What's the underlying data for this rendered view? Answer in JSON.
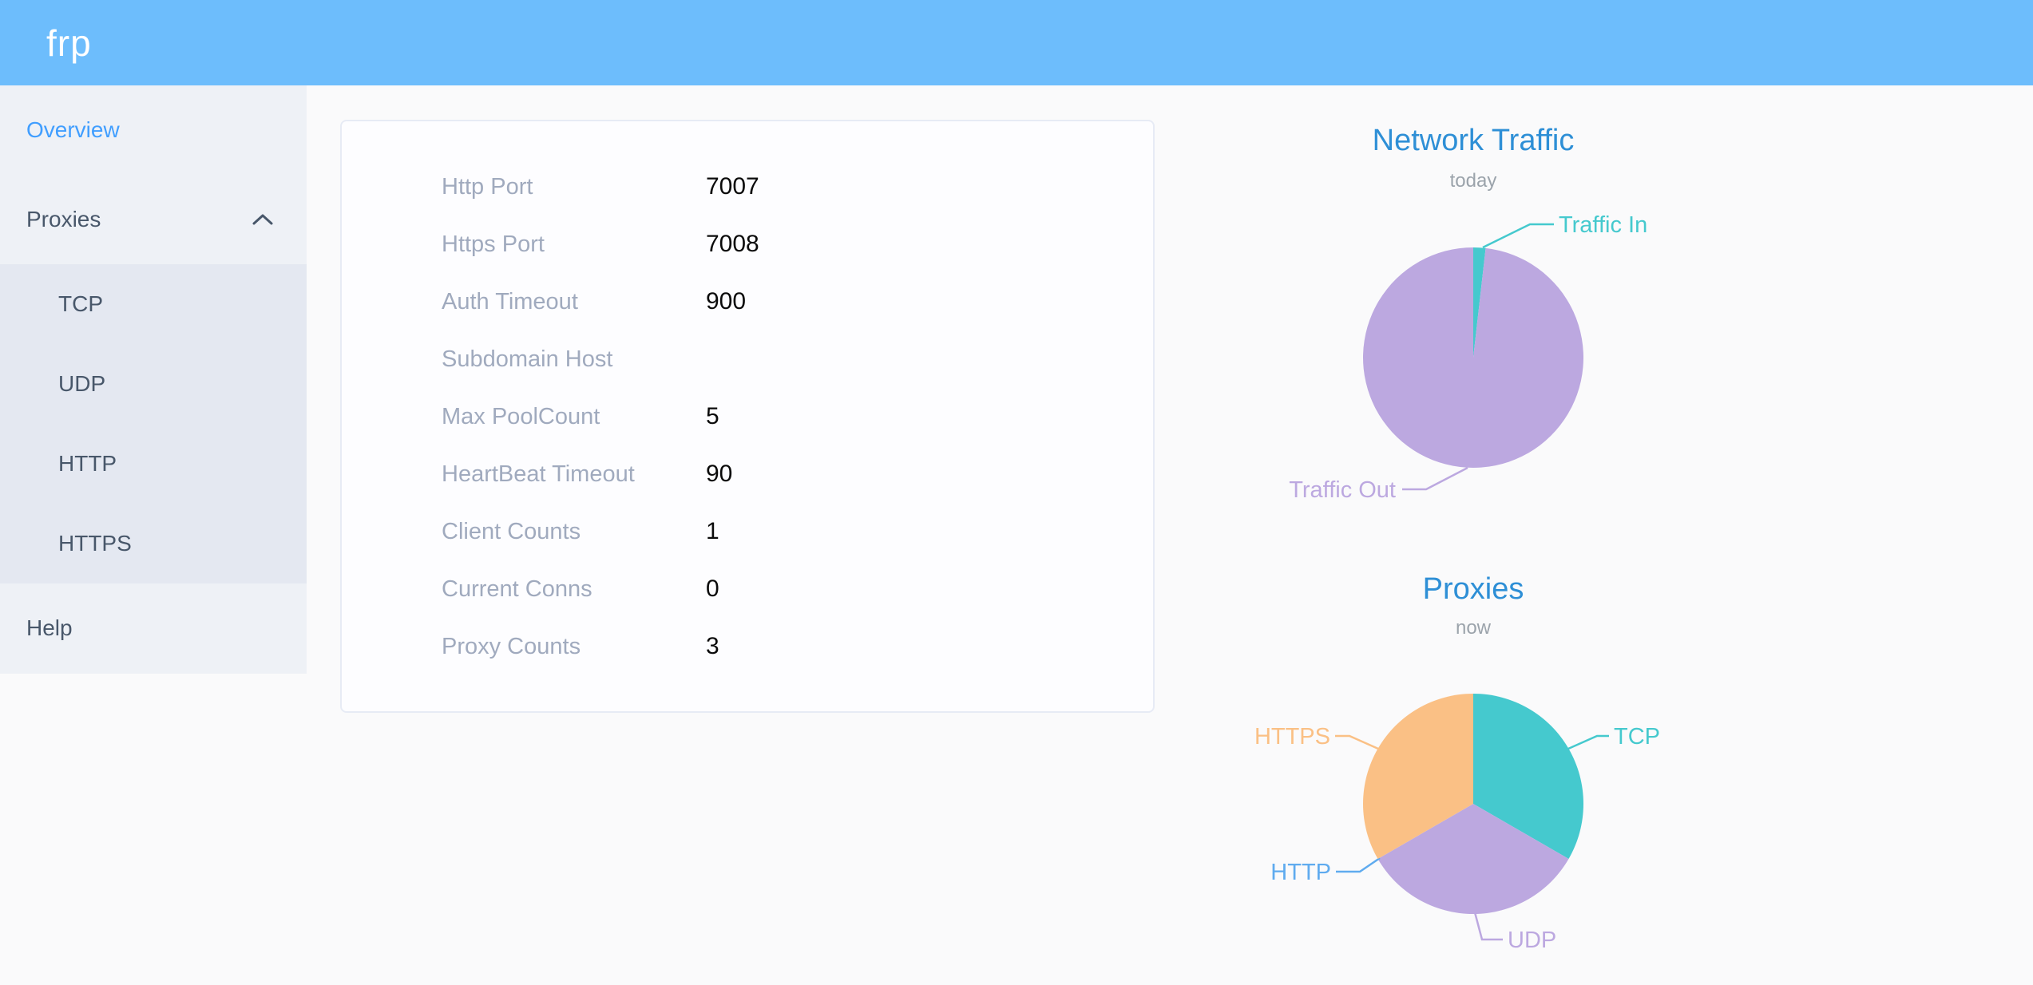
{
  "header": {
    "logo": "frp"
  },
  "sidebar": {
    "items": [
      {
        "label": "Overview",
        "active": true
      },
      {
        "label": "Proxies",
        "expanded": true,
        "children": [
          "TCP",
          "UDP",
          "HTTP",
          "HTTPS"
        ]
      },
      {
        "label": "Help"
      }
    ]
  },
  "overview": {
    "rows": [
      {
        "label": "Http Port",
        "value": "7007"
      },
      {
        "label": "Https Port",
        "value": "7008"
      },
      {
        "label": "Auth Timeout",
        "value": "900"
      },
      {
        "label": "Subdomain Host",
        "value": ""
      },
      {
        "label": "Max PoolCount",
        "value": "5"
      },
      {
        "label": "HeartBeat Timeout",
        "value": "90"
      },
      {
        "label": "Client Counts",
        "value": "1"
      },
      {
        "label": "Current Conns",
        "value": "0"
      },
      {
        "label": "Proxy Counts",
        "value": "3"
      }
    ]
  },
  "chart_data": [
    {
      "type": "pie",
      "title": "Network Traffic",
      "subtitle": "today",
      "legend_position": "callout-labels",
      "series": [
        {
          "name": "Traffic In",
          "pct": 1.8,
          "color": "#45c9ce"
        },
        {
          "name": "Traffic Out",
          "pct": 98.2,
          "color": "#bca8e0"
        }
      ]
    },
    {
      "type": "pie",
      "title": "Proxies",
      "subtitle": "now",
      "legend_position": "callout-labels",
      "series": [
        {
          "name": "TCP",
          "value": 1,
          "pct": 33.33,
          "color": "#45c9ce"
        },
        {
          "name": "UDP",
          "value": 1,
          "pct": 33.33,
          "color": "#bca8e0"
        },
        {
          "name": "HTTP",
          "value": 0,
          "pct": 0,
          "color": "#5fabef"
        },
        {
          "name": "HTTPS",
          "value": 1,
          "pct": 33.33,
          "color": "#fac085"
        }
      ]
    }
  ],
  "colors": {
    "header_bg": "#6dbdfc",
    "sidebar_bg": "#eef1f6",
    "submenu_bg": "#e4e8f1",
    "menu_text": "#48576a",
    "menu_active": "#409eff",
    "chart_title": "#2e8fd6",
    "card_label": "#a0aabe"
  }
}
